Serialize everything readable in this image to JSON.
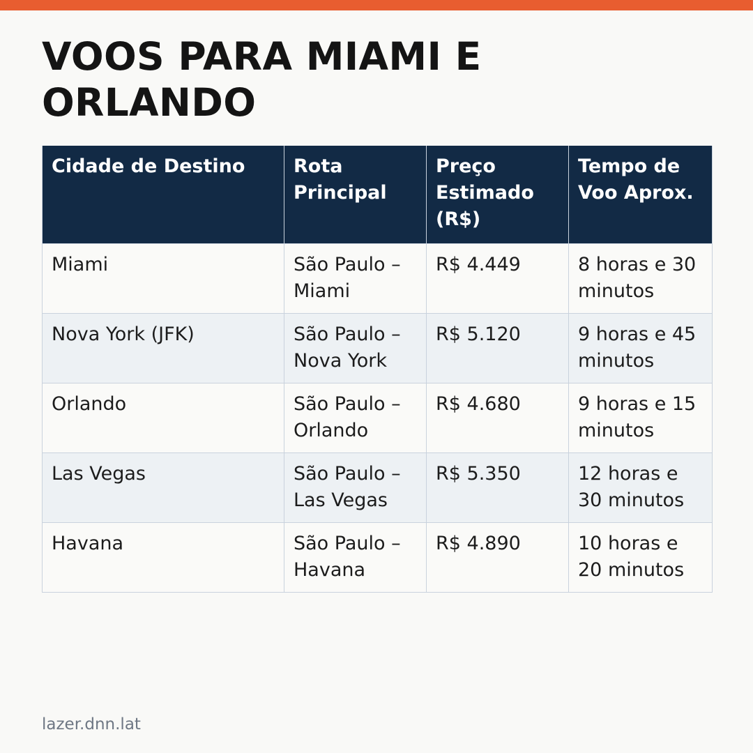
{
  "title": "VOOS PARA MIAMI E ORLANDO",
  "table": {
    "headers": [
      "Cidade de Destino",
      "Rota Principal",
      "Preço Estimado (R$)",
      "Tempo de Voo Aprox."
    ],
    "rows": [
      [
        "Miami",
        "São Paulo – Miami",
        "R$ 4.449",
        "8 horas e 30 minutos"
      ],
      [
        "Nova York (JFK)",
        "São Paulo – Nova York",
        "R$ 5.120",
        "9 horas e 45 minutos"
      ],
      [
        "Orlando",
        "São Paulo – Orlando",
        "R$ 4.680",
        "9 horas e 15 minutos"
      ],
      [
        "Las Vegas",
        "São Paulo – Las Vegas",
        "R$ 5.350",
        "12 horas e 30 minutos"
      ],
      [
        "Havana",
        "São Paulo – Havana",
        "R$ 4.890",
        "10 horas e 20 minutos"
      ]
    ]
  },
  "footer": "lazer.dnn.lat",
  "colors": {
    "accent_bar": "#e85d30",
    "header_bg": "#122a45",
    "row_alt_bg": "#edf1f4"
  }
}
